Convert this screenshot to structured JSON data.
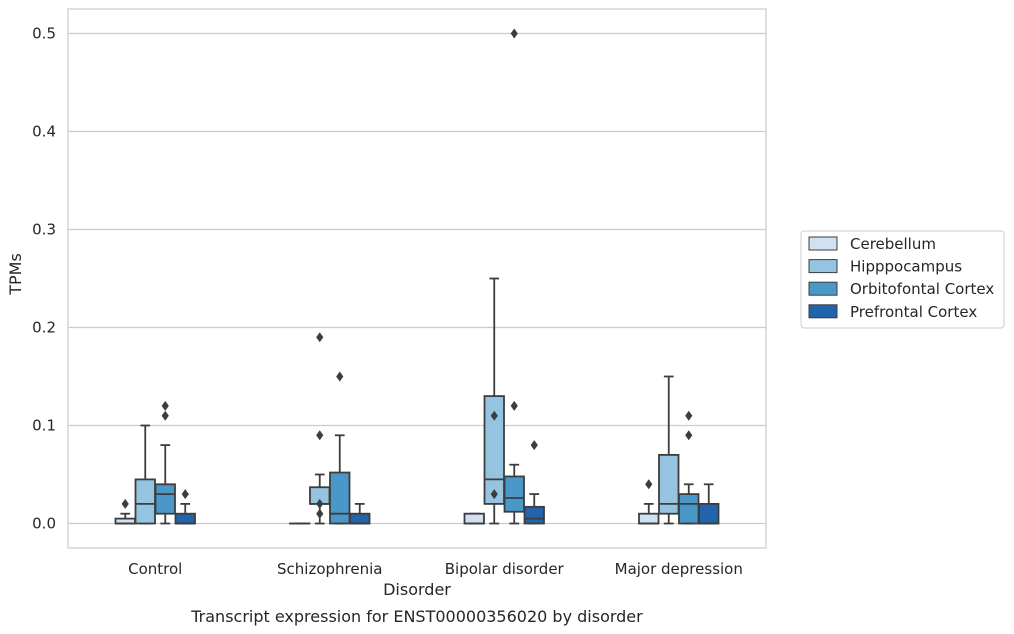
{
  "chart_data": {
    "type": "box",
    "title": "",
    "caption": "Transcript expression for ENST00000356020 by disorder",
    "xlabel": "Disorder",
    "ylabel": "TPMs",
    "ylim": [
      -0.025,
      0.525
    ],
    "yticks": [
      0.0,
      0.1,
      0.2,
      0.3,
      0.4,
      0.5
    ],
    "ytick_labels": [
      "0.0",
      "0.1",
      "0.2",
      "0.3",
      "0.4",
      "0.5"
    ],
    "grid": "horizontal",
    "legend_position": "right",
    "categories": [
      "Control",
      "Schizophrenia",
      "Bipolar disorder",
      "Major depression"
    ],
    "series": [
      {
        "name": "Cerebellum",
        "color": "#d0e1f2",
        "boxes": [
          {
            "whislo": 0.0,
            "q1": 0.0,
            "med": 0.0,
            "q3": 0.005,
            "whishi": 0.01,
            "fliers": [
              0.02
            ]
          },
          {
            "whislo": 0.0,
            "q1": 0.0,
            "med": 0.0,
            "q3": 0.0,
            "whishi": 0.0,
            "fliers": []
          },
          {
            "whislo": 0.0,
            "q1": 0.0,
            "med": 0.0,
            "q3": 0.01,
            "whishi": 0.01,
            "fliers": []
          },
          {
            "whislo": 0.0,
            "q1": 0.0,
            "med": 0.0,
            "q3": 0.01,
            "whishi": 0.02,
            "fliers": [
              0.04
            ]
          }
        ]
      },
      {
        "name": "Hipppocampus",
        "color": "#94c4df",
        "boxes": [
          {
            "whislo": 0.0,
            "q1": 0.0,
            "med": 0.02,
            "q3": 0.045,
            "whishi": 0.1,
            "fliers": []
          },
          {
            "whislo": 0.0,
            "q1": 0.02,
            "med": 0.02,
            "q3": 0.037,
            "whishi": 0.05,
            "fliers": [
              0.01,
              0.02,
              0.09,
              0.19
            ]
          },
          {
            "whislo": 0.0,
            "q1": 0.02,
            "med": 0.045,
            "q3": 0.13,
            "whishi": 0.25,
            "fliers": [
              0.03,
              0.11
            ]
          },
          {
            "whislo": 0.0,
            "q1": 0.01,
            "med": 0.02,
            "q3": 0.07,
            "whishi": 0.15,
            "fliers": []
          }
        ]
      },
      {
        "name": "Orbitofontal Cortex",
        "color": "#4a98c9",
        "boxes": [
          {
            "whislo": 0.0,
            "q1": 0.01,
            "med": 0.03,
            "q3": 0.04,
            "whishi": 0.08,
            "fliers": [
              0.11,
              0.12
            ]
          },
          {
            "whislo": 0.0,
            "q1": 0.0,
            "med": 0.01,
            "q3": 0.052,
            "whishi": 0.09,
            "fliers": [
              0.15
            ]
          },
          {
            "whislo": 0.0,
            "q1": 0.012,
            "med": 0.026,
            "q3": 0.048,
            "whishi": 0.06,
            "fliers": [
              0.12,
              0.5
            ]
          },
          {
            "whislo": 0.0,
            "q1": 0.0,
            "med": 0.02,
            "q3": 0.03,
            "whishi": 0.04,
            "fliers": [
              0.09,
              0.11
            ]
          }
        ]
      },
      {
        "name": "Prefrontal Cortex",
        "color": "#2164ab",
        "boxes": [
          {
            "whislo": 0.0,
            "q1": 0.0,
            "med": 0.0,
            "q3": 0.01,
            "whishi": 0.02,
            "fliers": [
              0.03
            ]
          },
          {
            "whislo": 0.0,
            "q1": 0.0,
            "med": 0.0,
            "q3": 0.01,
            "whishi": 0.02,
            "fliers": []
          },
          {
            "whislo": 0.0,
            "q1": 0.0,
            "med": 0.005,
            "q3": 0.017,
            "whishi": 0.03,
            "fliers": [
              0.08
            ]
          },
          {
            "whislo": 0.0,
            "q1": 0.0,
            "med": 0.0,
            "q3": 0.02,
            "whishi": 0.04,
            "fliers": []
          }
        ]
      }
    ]
  }
}
